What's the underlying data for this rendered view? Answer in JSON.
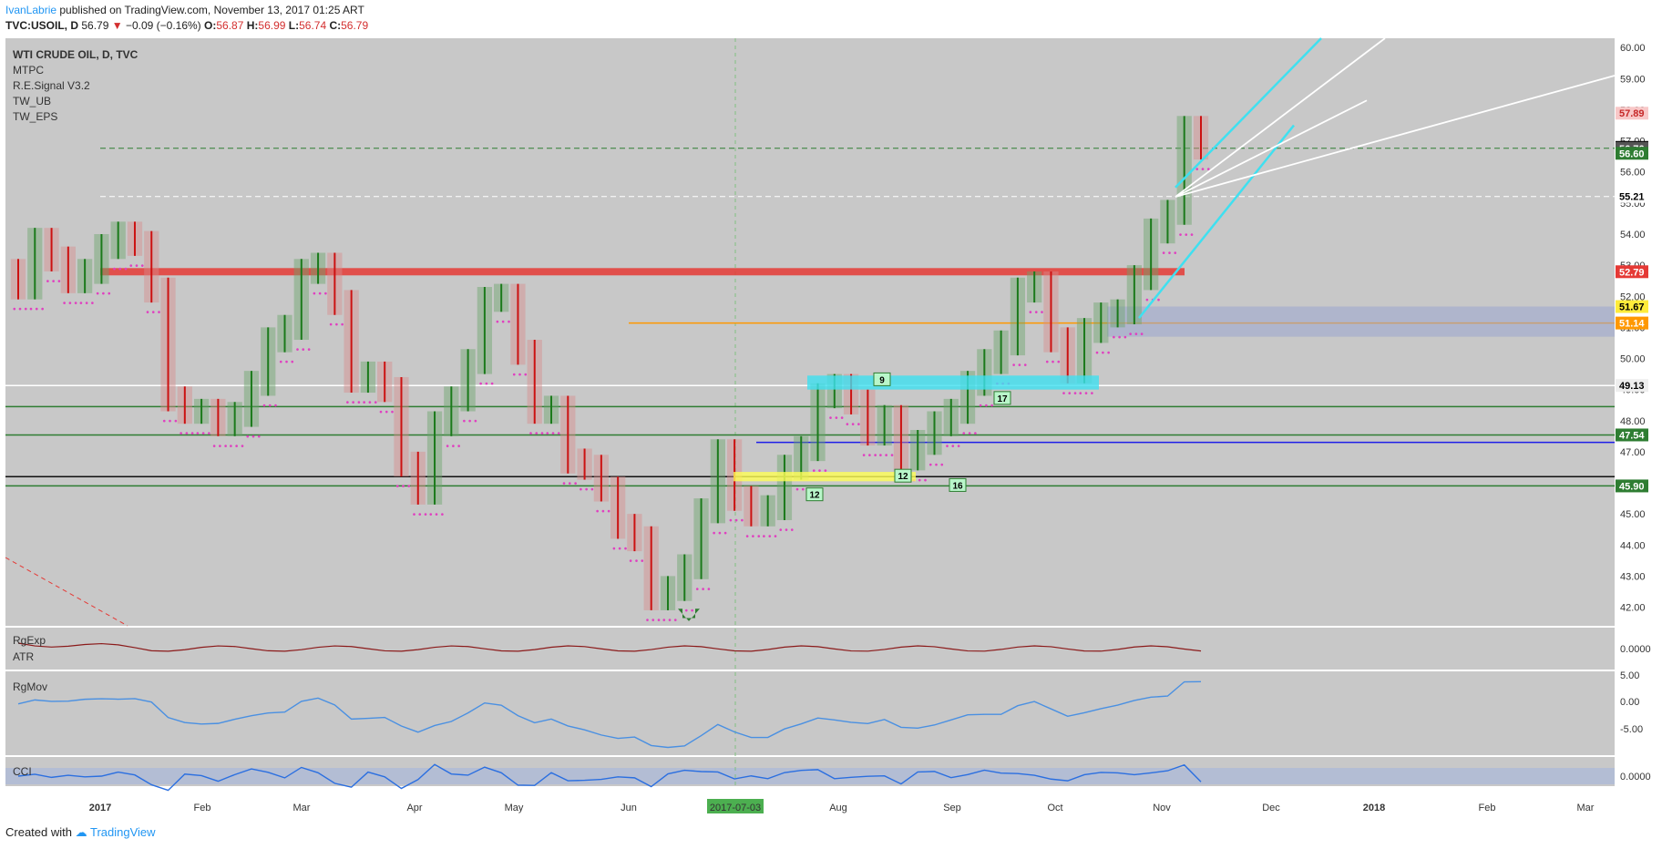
{
  "header": {
    "publisher": "IvanLabrie",
    "published_text": " published on TradingView.com, November 13, 2017 01:25 ART",
    "symbol": "TVC:USOIL, D",
    "last": "56.79",
    "change": "−0.09 (−0.16%)",
    "O": "56.87",
    "H": "56.99",
    "L": "56.74",
    "C": "56.79"
  },
  "footer": {
    "created_with": "Created with",
    "brand": "TradingView"
  },
  "chart_data": {
    "type": "candlestick",
    "title": "WTI CRUDE OIL, D, TVC",
    "studies": [
      "MTPC",
      "R.E.Signal V3.2",
      "TW_UB",
      "TW_EPS"
    ],
    "x_labels": [
      "2017",
      "Feb",
      "Mar",
      "Apr",
      "May",
      "Jun",
      "2017-07-03",
      "Aug",
      "Sep",
      "Oct",
      "Nov",
      "Dec",
      "2018",
      "Feb",
      "Mar"
    ],
    "x_highlight": "2017-07-03",
    "ylim": [
      41.4,
      60.3
    ],
    "y_ticks": [
      42.0,
      43.0,
      44.0,
      45.0,
      46.0,
      47.0,
      48.0,
      49.0,
      50.0,
      51.0,
      52.0,
      53.0,
      54.0,
      55.0,
      56.0,
      57.0,
      58.0,
      59.0,
      60.0
    ],
    "price_badges": [
      {
        "value": "57.89",
        "color": "#f8c8c8",
        "text_color": "#c62828"
      },
      {
        "value": "56.79",
        "color": "#000000",
        "text_color": "#ffffff"
      },
      {
        "value": "56.76",
        "color": "#555555",
        "text_color": "#ffffff"
      },
      {
        "value": "56.60",
        "color": "#2e7d32",
        "text_color": "#ffffff"
      },
      {
        "value": "55.21",
        "color": "#ffffff",
        "text_color": "#000000"
      },
      {
        "value": "52.79",
        "color": "#e53935",
        "text_color": "#ffffff"
      },
      {
        "value": "51.67",
        "color": "#ffeb3b",
        "text_color": "#000000"
      },
      {
        "value": "51.14",
        "color": "#ff9800",
        "text_color": "#ffffff"
      },
      {
        "value": "49.13",
        "color": "#eeeeee",
        "text_color": "#000000"
      },
      {
        "value": "47.54",
        "color": "#2e7d32",
        "text_color": "#ffffff"
      },
      {
        "value": "45.90",
        "color": "#2e7d32",
        "text_color": "#ffffff"
      }
    ],
    "horizontal_levels": [
      {
        "value": 52.79,
        "color": "#e53935",
        "style": "band"
      },
      {
        "value": 51.14,
        "color": "#ff9800",
        "style": "line"
      },
      {
        "value": 49.13,
        "color": "#ffffff",
        "style": "line"
      },
      {
        "value": 48.45,
        "color": "#2e7d32",
        "style": "line"
      },
      {
        "value": 47.54,
        "color": "#2e7d32",
        "style": "line"
      },
      {
        "value": 47.3,
        "color": "#1e1ee8",
        "style": "line"
      },
      {
        "value": 46.2,
        "color": "#111111",
        "style": "line"
      },
      {
        "value": 45.9,
        "color": "#2e7d32",
        "style": "line"
      },
      {
        "value": 56.76,
        "color": "#2e7d32",
        "style": "dashed"
      },
      {
        "value": 55.21,
        "color": "#ffffff",
        "style": "dashed"
      }
    ],
    "series": [
      {
        "name": "USOIL daily close (approx.)",
        "values": [
          52.3,
          53.8,
          53.2,
          52.5,
          52.8,
          53.6,
          54.0,
          53.7,
          52.2,
          48.7,
          48.3,
          48.3,
          47.9,
          48.2,
          49.2,
          50.6,
          51.0,
          52.8,
          53.0,
          51.8,
          49.3,
          49.5,
          49.0,
          46.6,
          45.7,
          47.9,
          48.7,
          49.9,
          51.9,
          52.0,
          50.2,
          48.3,
          48.4,
          46.7,
          46.5,
          45.8,
          44.6,
          44.2,
          42.3,
          42.6,
          43.3,
          45.1,
          47.0,
          45.5,
          45.0,
          45.2,
          46.5,
          47.1,
          48.8,
          49.1,
          48.6,
          47.6,
          48.1,
          46.8,
          47.3,
          47.9,
          48.3,
          49.2,
          49.9,
          50.5,
          52.2,
          52.4,
          50.6,
          49.6,
          50.9,
          51.4,
          51.5,
          52.6,
          54.1,
          54.7,
          57.4,
          56.8
        ]
      }
    ],
    "subpanels": [
      {
        "name": "RgExp",
        "label2": "ATR",
        "y_tick": "0.0000"
      },
      {
        "name": "RgMov",
        "y_ticks": [
          "5.00",
          "0.00",
          "-5.00"
        ]
      },
      {
        "name": "CCI",
        "y_tick": "0.0000"
      }
    ],
    "signal_labels": [
      "9",
      "12",
      "12",
      "16",
      "17"
    ]
  },
  "colors": {
    "panel_bg": "#c8c8c8",
    "up": "#1b7a1b",
    "down": "#cc1111",
    "cyan": "#3fe0f0",
    "atr": "#8b1a1a",
    "rgmov": "#4a90e2"
  }
}
